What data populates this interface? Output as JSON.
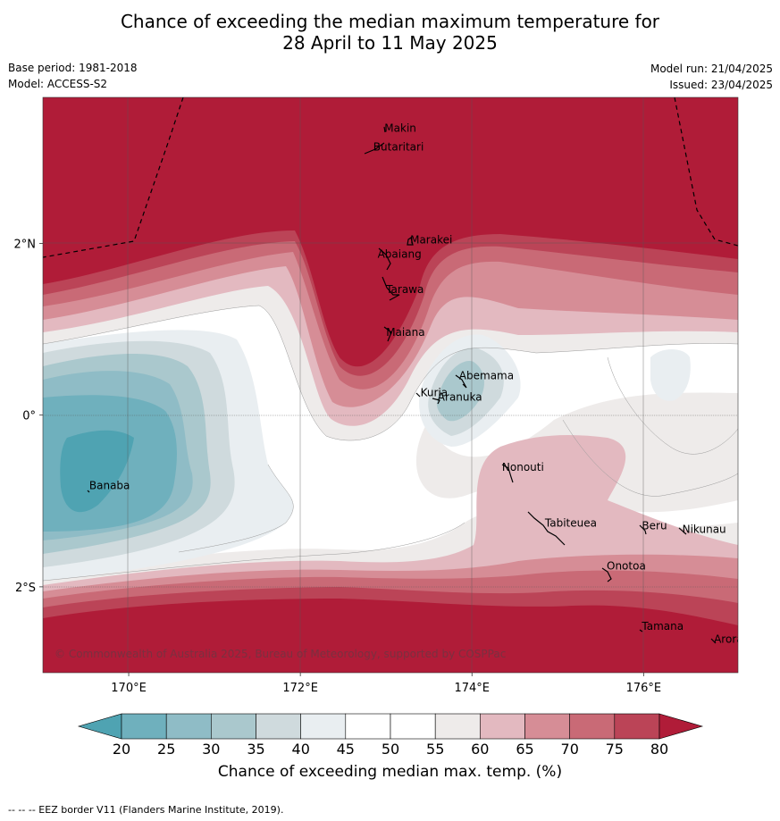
{
  "title": {
    "line1": "Chance of exceeding the median maximum temperature for",
    "line2": "28 April to 11 May 2025"
  },
  "meta": {
    "base_period": "Base period: 1981-2018",
    "model": "Model: ACCESS-S2",
    "model_run": "Model run: 21/04/2025",
    "issued": "Issued: 23/04/2025"
  },
  "map": {
    "lon_range": [
      169,
      177.1
    ],
    "lat_range": [
      -3.0,
      3.7
    ],
    "lon_ticks": [
      {
        "value": 170,
        "label": "170°E"
      },
      {
        "value": 172,
        "label": "172°E"
      },
      {
        "value": 174,
        "label": "174°E"
      },
      {
        "value": 176,
        "label": "176°E"
      }
    ],
    "lat_ticks": [
      {
        "value": 2,
        "label": "2°N"
      },
      {
        "value": 0,
        "label": "0°"
      },
      {
        "value": -2,
        "label": "2°S"
      }
    ],
    "places": [
      {
        "name": "Makin",
        "lon": 172.98,
        "lat": 3.3
      },
      {
        "name": "Butaritari",
        "lon": 172.85,
        "lat": 3.08
      },
      {
        "name": "Marakei",
        "lon": 173.28,
        "lat": 2.0
      },
      {
        "name": "Abaiang",
        "lon": 172.9,
        "lat": 1.83
      },
      {
        "name": "Tarawa",
        "lon": 173.0,
        "lat": 1.42
      },
      {
        "name": "Maiana",
        "lon": 173.0,
        "lat": 0.92
      },
      {
        "name": "Abemama",
        "lon": 173.85,
        "lat": 0.42
      },
      {
        "name": "Kuria",
        "lon": 173.4,
        "lat": 0.22
      },
      {
        "name": "Aranuka",
        "lon": 173.6,
        "lat": 0.17
      },
      {
        "name": "Nonouti",
        "lon": 174.35,
        "lat": -0.65
      },
      {
        "name": "Banaba",
        "lon": 169.54,
        "lat": -0.86
      },
      {
        "name": "Tabiteuea",
        "lon": 174.85,
        "lat": -1.3
      },
      {
        "name": "Beru",
        "lon": 175.98,
        "lat": -1.33
      },
      {
        "name": "Nikunau",
        "lon": 176.45,
        "lat": -1.37
      },
      {
        "name": "Onotoa",
        "lon": 175.57,
        "lat": -1.8
      },
      {
        "name": "Tamana",
        "lon": 175.98,
        "lat": -2.5
      },
      {
        "name": "Arorae",
        "lon": 176.82,
        "lat": -2.65
      }
    ],
    "copyright": "© Commonwealth of Australia 2025, Bureau of Meteorology, supported by COSPPac"
  },
  "colorbar": {
    "title": "Chance of exceeding median max. temp. (%)",
    "ticks": [
      "20",
      "25",
      "30",
      "35",
      "40",
      "45",
      "50",
      "55",
      "60",
      "65",
      "70",
      "75",
      "80"
    ],
    "colors": [
      "#4fa3b2",
      "#6fb0bd",
      "#8fbcc6",
      "#aac8cd",
      "#cfdadd",
      "#e9eef1",
      "#ffffff",
      "#ffffff",
      "#eeebea",
      "#e3b9c0",
      "#d68d96",
      "#c96a76",
      "#bb4457",
      "#b01c38"
    ]
  },
  "footer": "-- -- -- EEZ border V11 (Flanders Marine Institute, 2019)."
}
